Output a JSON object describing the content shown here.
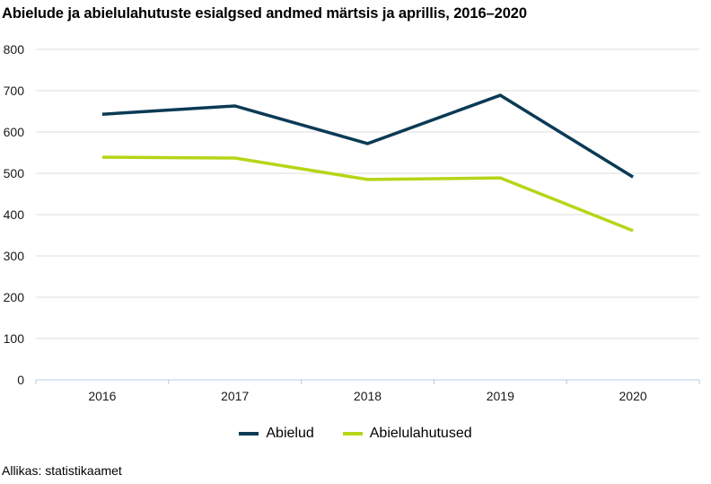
{
  "chart_data": {
    "type": "line",
    "title": "Abielude ja abielulahutuste esialgsed andmed märtsis ja aprillis, 2016–2020",
    "xlabel": "",
    "ylabel": "",
    "categories": [
      "2016",
      "2017",
      "2018",
      "2019",
      "2020"
    ],
    "ylim": [
      0,
      800
    ],
    "yticks": [
      "0",
      "100",
      "200",
      "300",
      "400",
      "500",
      "600",
      "700",
      "800"
    ],
    "grid": true,
    "legend_position": "bottom",
    "series": [
      {
        "name": "Abielud",
        "color": "#0b3a55",
        "values": [
          643,
          663,
          572,
          689,
          491
        ]
      },
      {
        "name": "Abielulahutused",
        "color": "#b6d518",
        "values": [
          539,
          537,
          485,
          489,
          361
        ]
      }
    ],
    "source": "Allikas: statistikaamet"
  }
}
